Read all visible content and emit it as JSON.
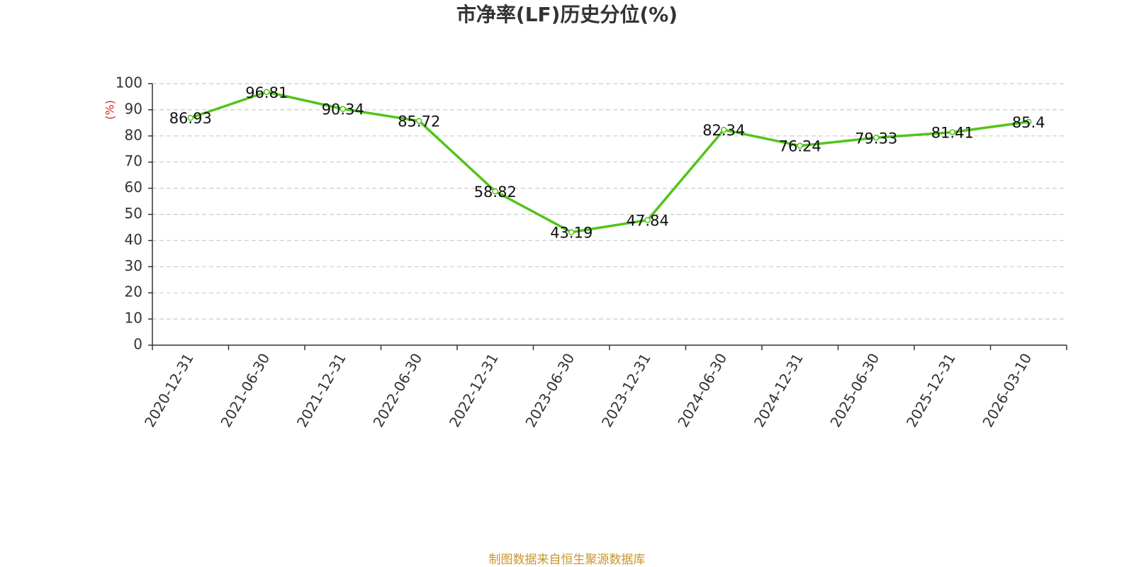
{
  "chart_data": {
    "type": "line",
    "title": "市净率(LF)历史分位(%)",
    "y_label": "(%)",
    "categories": [
      "2020-12-31",
      "2021-06-30",
      "2021-12-31",
      "2022-06-30",
      "2022-12-31",
      "2023-06-30",
      "2023-12-31",
      "2024-06-30",
      "2024-12-31",
      "2025-06-30",
      "2025-12-31",
      "2026-03-10"
    ],
    "values": [
      86.93,
      96.81,
      90.34,
      85.72,
      58.82,
      43.19,
      47.84,
      82.34,
      76.24,
      79.33,
      81.41,
      85.4
    ],
    "color": "#52c41a",
    "ylim": [
      0,
      100
    ],
    "yticks": [
      0,
      10,
      20,
      30,
      40,
      50,
      60,
      70,
      80,
      90,
      100
    ],
    "grid": true,
    "source": "制图数据来自恒生聚源数据库"
  }
}
